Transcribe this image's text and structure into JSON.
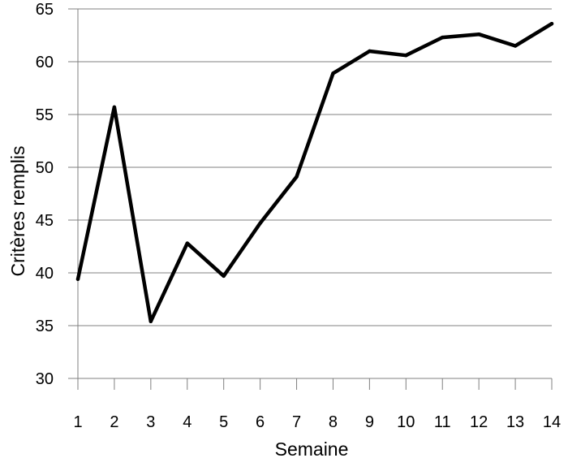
{
  "chart_data": {
    "type": "line",
    "title": "",
    "xlabel": "Semaine",
    "ylabel": "Critères remplis",
    "x": [
      1,
      2,
      3,
      4,
      5,
      6,
      7,
      8,
      9,
      10,
      11,
      12,
      13,
      14
    ],
    "series": [
      {
        "name": "",
        "values": [
          39.4,
          55.7,
          35.4,
          42.8,
          39.7,
          44.7,
          49.1,
          58.9,
          61.0,
          60.6,
          62.3,
          62.6,
          61.5,
          63.6
        ]
      }
    ],
    "xticks": [
      "1",
      "2",
      "3",
      "4",
      "5",
      "6",
      "7",
      "8",
      "9",
      "10",
      "11",
      "12",
      "13",
      "14"
    ],
    "yticks": [
      "30",
      "35",
      "40",
      "45",
      "50",
      "55",
      "60",
      "65"
    ],
    "ylim": [
      30,
      65
    ],
    "xlim": [
      1,
      14
    ],
    "grid": "horizontal",
    "legend": "none",
    "line_color": "#000000",
    "grid_color": "#808080"
  }
}
